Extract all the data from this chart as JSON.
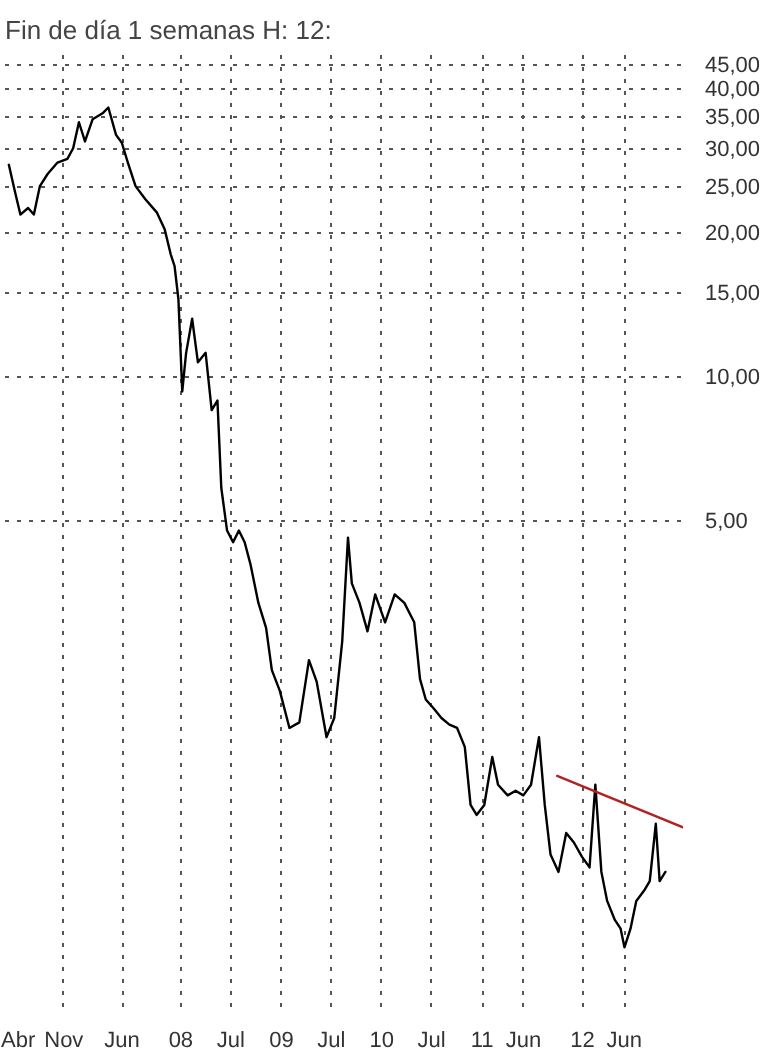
{
  "chart_data": {
    "type": "line",
    "title": "Fin de día 1 semanas H: 12:",
    "log": "y",
    "grid": true,
    "line_style": "solid",
    "marker": "none",
    "xlim": [
      "2006-04-01",
      "2013-01-01"
    ],
    "ylim": [
      0.48,
      47
    ],
    "xticks": [
      {
        "value": "2006-04-01",
        "label": "Abr"
      },
      {
        "value": "2006-11-01",
        "label": "Nov"
      },
      {
        "value": "2007-06-01",
        "label": "Jun"
      },
      {
        "value": "2008-01-01",
        "label": "08"
      },
      {
        "value": "2008-07-01",
        "label": "Jul"
      },
      {
        "value": "2009-01-01",
        "label": "09"
      },
      {
        "value": "2009-07-01",
        "label": "Jul"
      },
      {
        "value": "2010-01-01",
        "label": "10"
      },
      {
        "value": "2010-07-01",
        "label": "Jul"
      },
      {
        "value": "2011-01-01",
        "label": "11"
      },
      {
        "value": "2011-06-01",
        "label": "Jun"
      },
      {
        "value": "2012-01-01",
        "label": "12"
      },
      {
        "value": "2012-06-01",
        "label": "Jun"
      }
    ],
    "yticks": [
      {
        "value": 5,
        "label": "5,00"
      },
      {
        "value": 10,
        "label": "10,00"
      },
      {
        "value": 15,
        "label": "15,00"
      },
      {
        "value": 20,
        "label": "20,00"
      },
      {
        "value": 25,
        "label": "25,00"
      },
      {
        "value": 30,
        "label": "30,00"
      },
      {
        "value": 35,
        "label": "35,00"
      },
      {
        "value": 40,
        "label": "40,00"
      },
      {
        "value": 45,
        "label": "45,00"
      }
    ],
    "series": [
      {
        "color": "#000000",
        "x": [
          "2006-04-15",
          "2006-05-06",
          "2006-05-27",
          "2006-06-24",
          "2006-07-15",
          "2006-08-06",
          "2006-09-03",
          "2006-10-09",
          "2006-11-14",
          "2006-12-05",
          "2006-12-26",
          "2007-01-17",
          "2007-02-14",
          "2007-03-22",
          "2007-04-12",
          "2007-05-10",
          "2007-05-31",
          "2007-06-22",
          "2007-07-20",
          "2007-08-24",
          "2007-10-06",
          "2007-11-03",
          "2007-11-25",
          "2007-12-09",
          "2007-12-23",
          "2008-01-06",
          "2008-01-20",
          "2008-02-11",
          "2008-03-03",
          "2008-03-31",
          "2008-04-22",
          "2008-05-13",
          "2008-05-27",
          "2008-06-17",
          "2008-07-09",
          "2008-07-30",
          "2008-08-20",
          "2008-09-10",
          "2008-10-09",
          "2008-11-06",
          "2008-11-27",
          "2008-12-26",
          "2009-01-30",
          "2009-03-07",
          "2009-04-11",
          "2009-05-09",
          "2009-06-14",
          "2009-07-12",
          "2009-08-10",
          "2009-08-31",
          "2009-09-14",
          "2009-10-12",
          "2009-11-10",
          "2009-12-08",
          "2010-01-13",
          "2010-02-17",
          "2010-03-24",
          "2010-04-29",
          "2010-05-20",
          "2010-06-10",
          "2010-07-09",
          "2010-08-06",
          "2010-09-04",
          "2010-10-02",
          "2010-10-30",
          "2010-11-20",
          "2010-12-12",
          "2011-01-09",
          "2011-02-07",
          "2011-02-28",
          "2011-04-04",
          "2011-05-03",
          "2011-05-31",
          "2011-06-28",
          "2011-07-27",
          "2011-08-17",
          "2011-09-07",
          "2011-10-06",
          "2011-11-03",
          "2011-12-01",
          "2011-12-30",
          "2012-01-27",
          "2012-02-17",
          "2012-03-10",
          "2012-03-31",
          "2012-04-28",
          "2012-05-19",
          "2012-06-02",
          "2012-06-24",
          "2012-07-15",
          "2012-08-12",
          "2012-09-02",
          "2012-09-24",
          "2012-10-08",
          "2012-10-29"
        ],
        "values": [
          27.7,
          24.5,
          21.8,
          22.5,
          21.8,
          25,
          26.5,
          28,
          28.5,
          30,
          34,
          31,
          34.5,
          35.5,
          36.5,
          32,
          30.8,
          28,
          25,
          23.5,
          22,
          20.3,
          18,
          17,
          14.5,
          9.3,
          11.2,
          13.2,
          10.7,
          11.2,
          8.5,
          8.9,
          5.85,
          4.76,
          4.5,
          4.76,
          4.5,
          4.05,
          3.36,
          2.98,
          2.43,
          2.2,
          1.84,
          1.89,
          2.55,
          2.3,
          1.76,
          1.93,
          2.79,
          4.6,
          3.69,
          3.36,
          2.93,
          3.5,
          3.06,
          3.5,
          3.36,
          3.06,
          2.33,
          2.11,
          2.02,
          1.93,
          1.87,
          1.84,
          1.68,
          1.27,
          1.21,
          1.27,
          1.6,
          1.4,
          1.33,
          1.36,
          1.33,
          1.4,
          1.76,
          1.27,
          1.0,
          0.92,
          1.11,
          1.06,
          0.99,
          0.94,
          1.4,
          0.92,
          0.8,
          0.73,
          0.7,
          0.64,
          0.7,
          0.8,
          0.84,
          0.88,
          1.16,
          0.88,
          0.92
        ]
      },
      {
        "color": "#b22222",
        "x": [
          "2011-10-01",
          "2013-01-01"
        ],
        "values": [
          1.46,
          1.14
        ]
      }
    ]
  }
}
